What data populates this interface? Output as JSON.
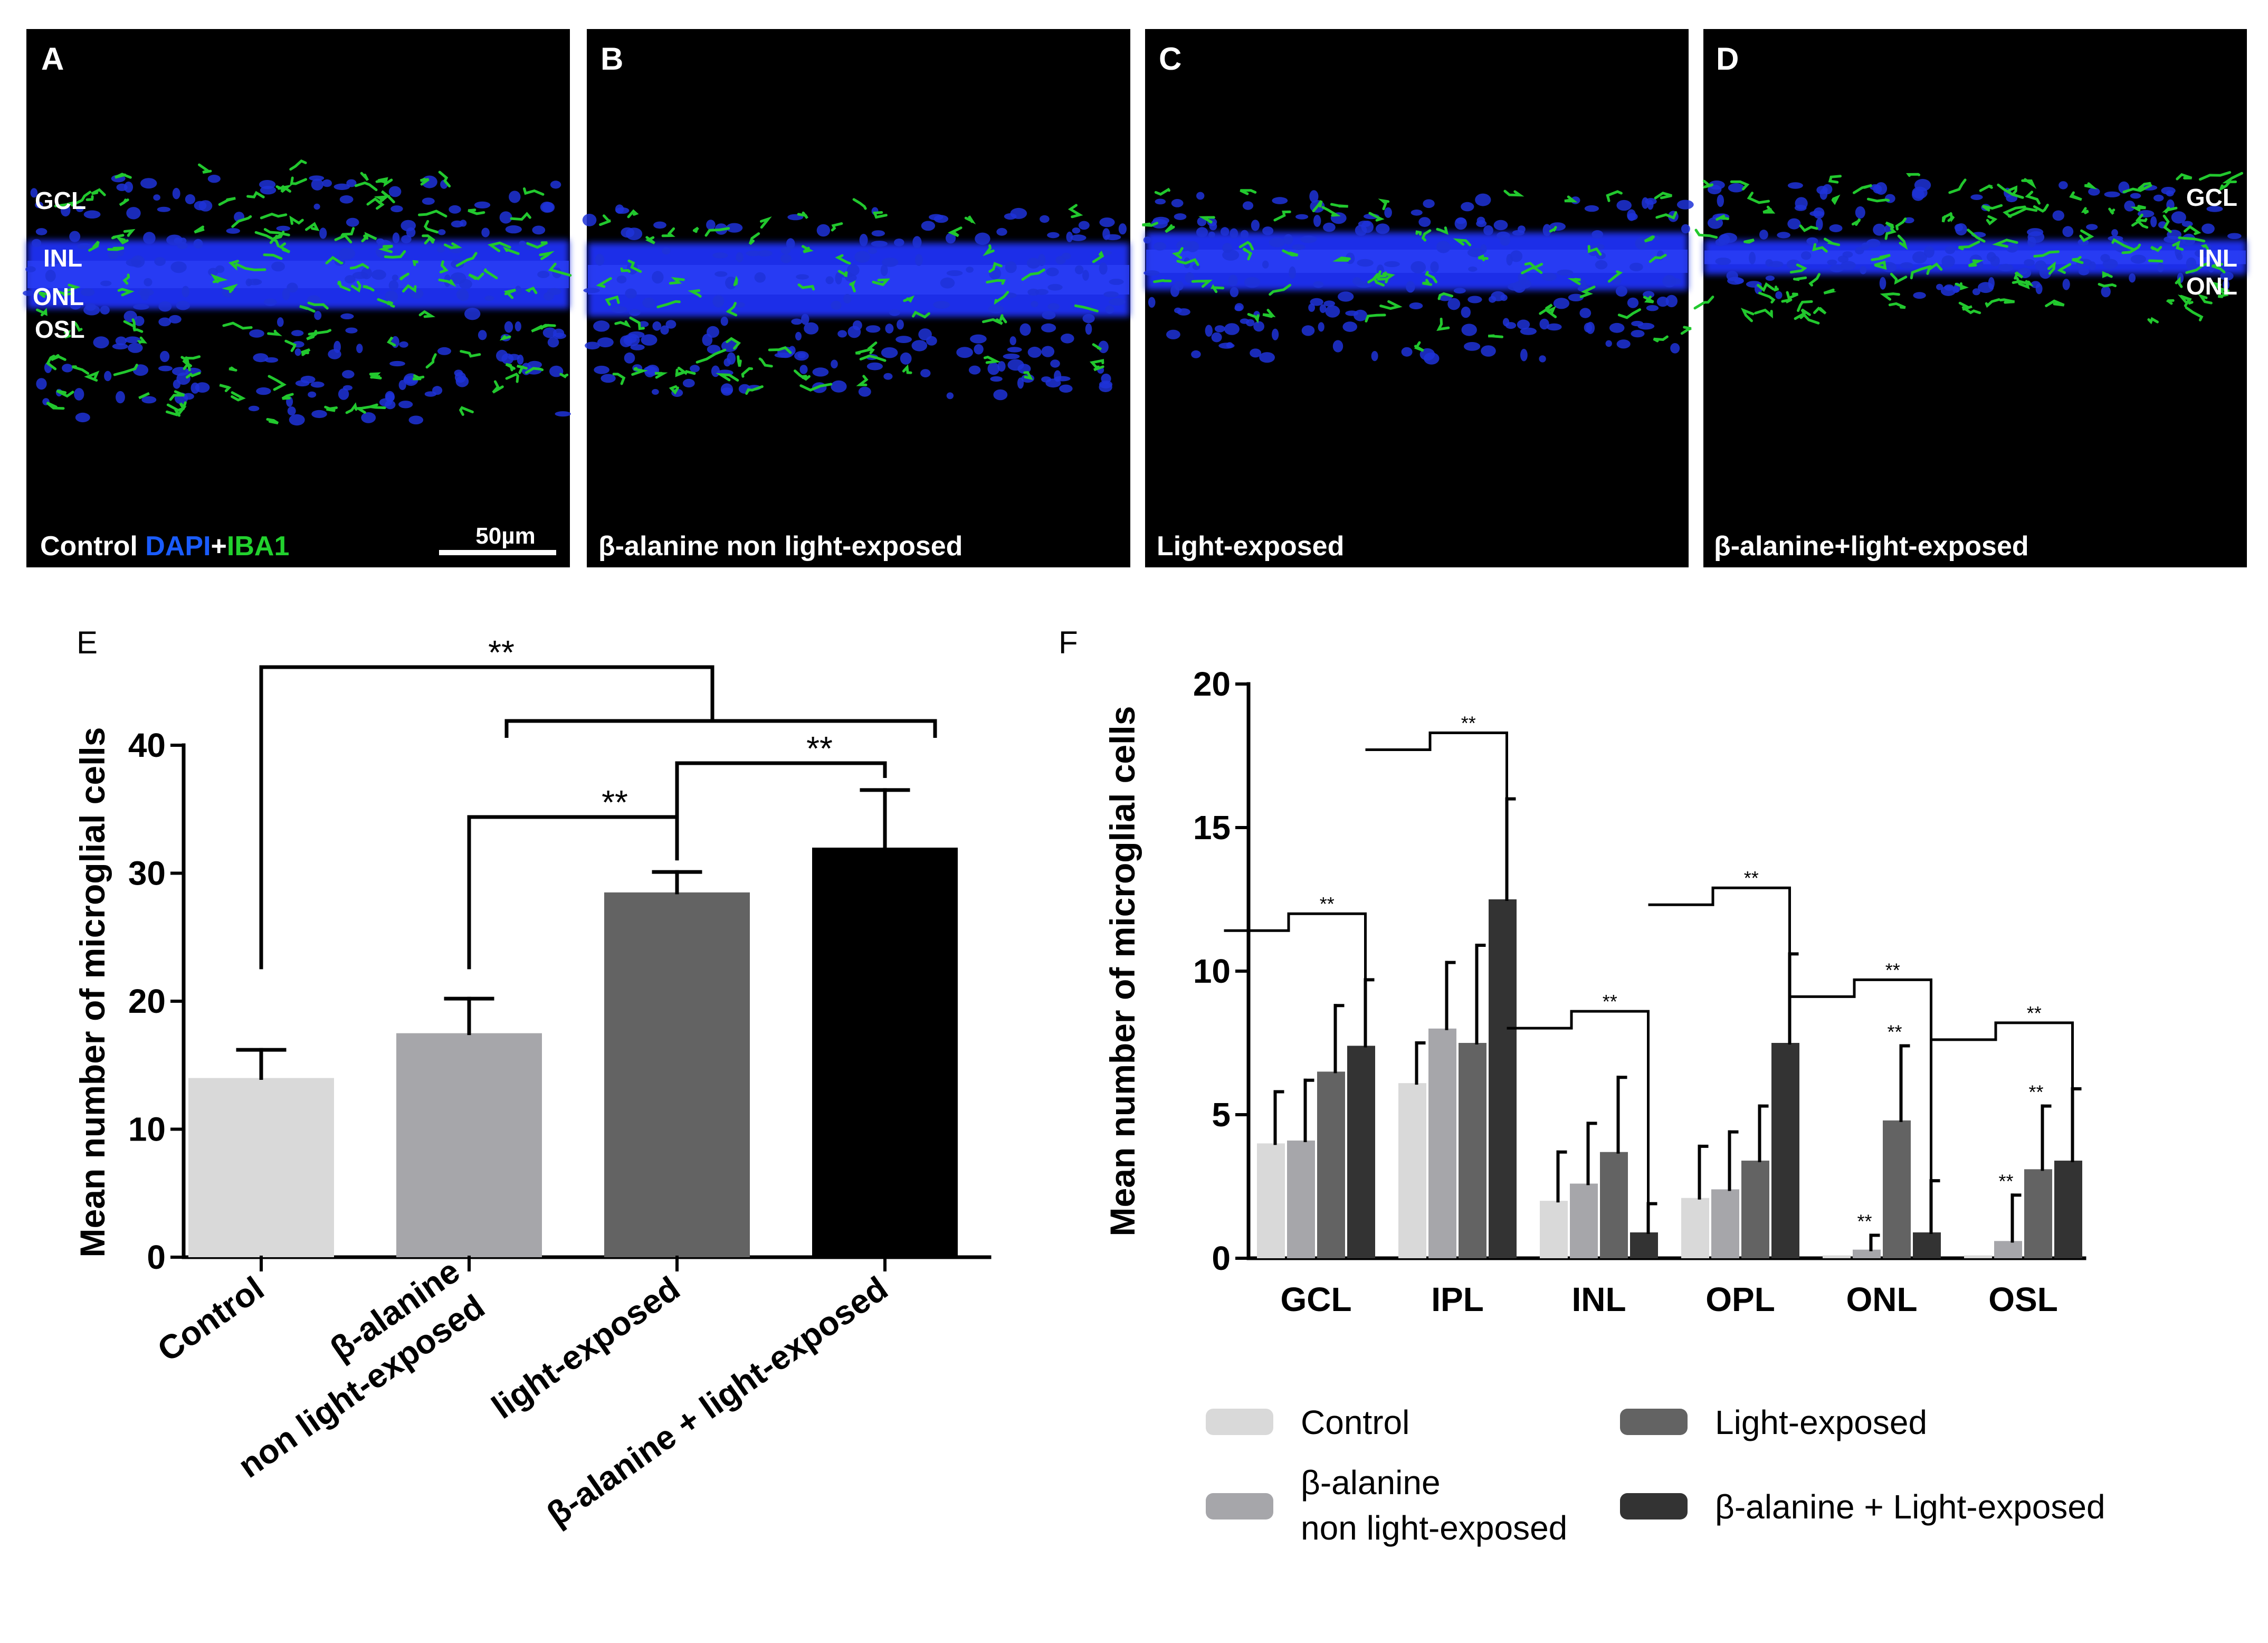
{
  "micrographs": {
    "A": {
      "letter": "A",
      "layers": [
        "GCL",
        "INL",
        "ONL",
        "OSL"
      ],
      "caption_prefix": "Control ",
      "caption_dapi": "DAPI",
      "caption_plus": "+",
      "caption_iba": "IBA1",
      "scale_bar": "50µm"
    },
    "B": {
      "letter": "B",
      "caption": "β-alanine non light-exposed"
    },
    "C": {
      "letter": "C",
      "caption": "Light-exposed"
    },
    "D": {
      "letter": "D",
      "layers": [
        "GCL",
        "INL",
        "ONL"
      ],
      "caption": "β-alanine+light-exposed"
    }
  },
  "colors": {
    "control": "#d9d9d9",
    "bala_nonlight": "#a6a6aa",
    "light_exposed": "#636363",
    "bala_light_E": "#000000",
    "bala_light_F": "#333333",
    "dapi": "#1a2fe8",
    "iba1": "#22c82e"
  },
  "chart_data": [
    {
      "panel": "E",
      "type": "bar",
      "ylabel": "Mean number of microglial cells",
      "ylim": [
        0,
        40
      ],
      "yticks": [
        0,
        10,
        20,
        30,
        40
      ],
      "categories": [
        "Control",
        "β-alanine\nnon light-exposed",
        "light-exposed",
        "β-alanine + light-exposed"
      ],
      "values": [
        14,
        17.5,
        28.5,
        32
      ],
      "errors": [
        2.2,
        2.7,
        1.6,
        4.5
      ],
      "significance": [
        {
          "label": "**",
          "between": [
            "Control",
            "light-exposed & β-alanine + light-exposed"
          ]
        },
        {
          "label": "**",
          "between": [
            "β-alanine non light-exposed",
            "light-exposed"
          ]
        },
        {
          "label": "**",
          "between": [
            "light-exposed",
            "β-alanine + light-exposed"
          ]
        }
      ]
    },
    {
      "panel": "F",
      "type": "bar",
      "ylabel": "Mean number of microglial cells",
      "ylim": [
        0,
        20
      ],
      "yticks": [
        0,
        5,
        10,
        15,
        20
      ],
      "categories": [
        "GCL",
        "IPL",
        "INL",
        "OPL",
        "ONL",
        "OSL"
      ],
      "series": [
        {
          "name": "Control",
          "values": [
            4.0,
            6.1,
            2.0,
            2.1,
            0.1,
            0.1
          ],
          "errors": [
            1.8,
            1.4,
            1.7,
            1.8,
            0.0,
            0.0
          ]
        },
        {
          "name": "β-alanine non light-exposed",
          "values": [
            4.1,
            8.0,
            2.6,
            2.4,
            0.3,
            0.6
          ],
          "errors": [
            2.1,
            2.3,
            2.1,
            2.0,
            0.5,
            1.6
          ]
        },
        {
          "name": "Light-exposed",
          "values": [
            6.5,
            7.5,
            3.7,
            3.4,
            4.8,
            3.1
          ],
          "errors": [
            2.3,
            3.4,
            2.6,
            1.9,
            2.6,
            2.2
          ]
        },
        {
          "name": "β-alanine + Light-exposed",
          "values": [
            7.4,
            12.5,
            0.9,
            7.5,
            0.9,
            3.4
          ],
          "errors": [
            2.3,
            3.5,
            1.0,
            3.1,
            1.8,
            2.5
          ]
        }
      ],
      "significance_label": "**",
      "point_significance": [
        {
          "category": "ONL",
          "series": "β-alanine non light-exposed"
        },
        {
          "category": "ONL",
          "series": "Light-exposed"
        },
        {
          "category": "OSL",
          "series": "β-alanine non light-exposed"
        },
        {
          "category": "OSL",
          "series": "Light-exposed"
        }
      ],
      "legend": [
        "Control",
        "β-alanine\nnon light-exposed",
        "Light-exposed",
        "β-alanine + Light-exposed"
      ]
    }
  ],
  "labels": {
    "E": "E",
    "F": "F",
    "sig": "**"
  }
}
